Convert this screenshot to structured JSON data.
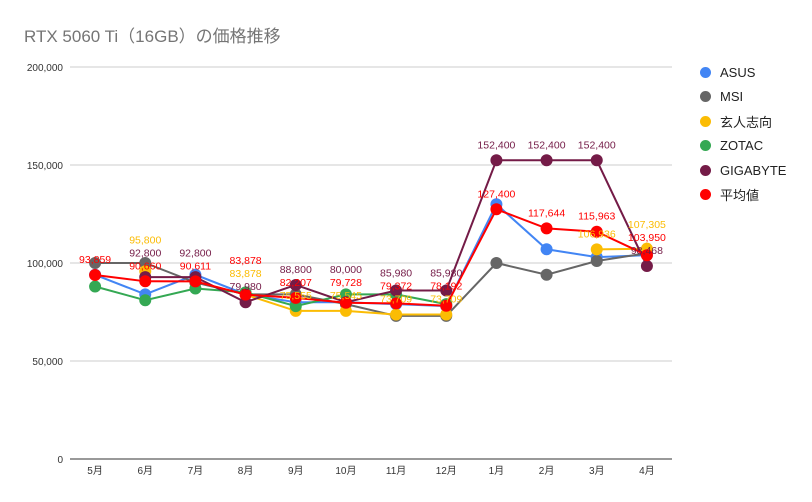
{
  "chart_data": {
    "type": "line",
    "title": "RTX 5060 Ti（16GB）の価格推移",
    "xlabel": "",
    "ylabel": "",
    "categories": [
      "5月",
      "6月",
      "7月",
      "8月",
      "9月",
      "10月",
      "11月",
      "12月",
      "1月",
      "2月",
      "3月",
      "4月"
    ],
    "ylim": [
      0,
      200000
    ],
    "yticks": [
      "0",
      "50,000",
      "100,000",
      "150,000",
      "200,000"
    ],
    "grid": true,
    "legend_position": "right",
    "series": [
      {
        "name": "ASUS",
        "color": "#4285f4",
        "values": [
          94000,
          84000,
          94000,
          84000,
          80000,
          80000,
          79000,
          78000,
          130000,
          107000,
          103000,
          104000
        ],
        "labels": false
      },
      {
        "name": "MSI",
        "color": "#666666",
        "values": [
          100000,
          100000,
          90000,
          84000,
          84000,
          79000,
          73000,
          73000,
          100000,
          94000,
          101000,
          105000
        ],
        "labels": false
      },
      {
        "name": "玄人志向",
        "color": "#fbbc04",
        "values": [
          null,
          95800,
          null,
          83878,
          75555,
          75545,
          73709,
          73709,
          null,
          null,
          106936,
          107305
        ],
        "labels": true
      },
      {
        "name": "ZOTAC",
        "color": "#34a853",
        "values": [
          88000,
          81000,
          87000,
          85000,
          78000,
          84000,
          84000,
          79000,
          null,
          null,
          null,
          null
        ],
        "labels": false
      },
      {
        "name": "GIGABYTE",
        "color": "#741b47",
        "values": [
          null,
          92800,
          92800,
          79980,
          88800,
          80000,
          85980,
          85980,
          152400,
          152400,
          152400,
          98468
        ],
        "labels": true
      },
      {
        "name": "平均値",
        "color": "#ff0000",
        "values": [
          93859,
          90660,
          90611,
          83878,
          82207,
          79728,
          79372,
          78192,
          127400,
          117644,
          115963,
          103950
        ],
        "labels": true
      }
    ]
  }
}
